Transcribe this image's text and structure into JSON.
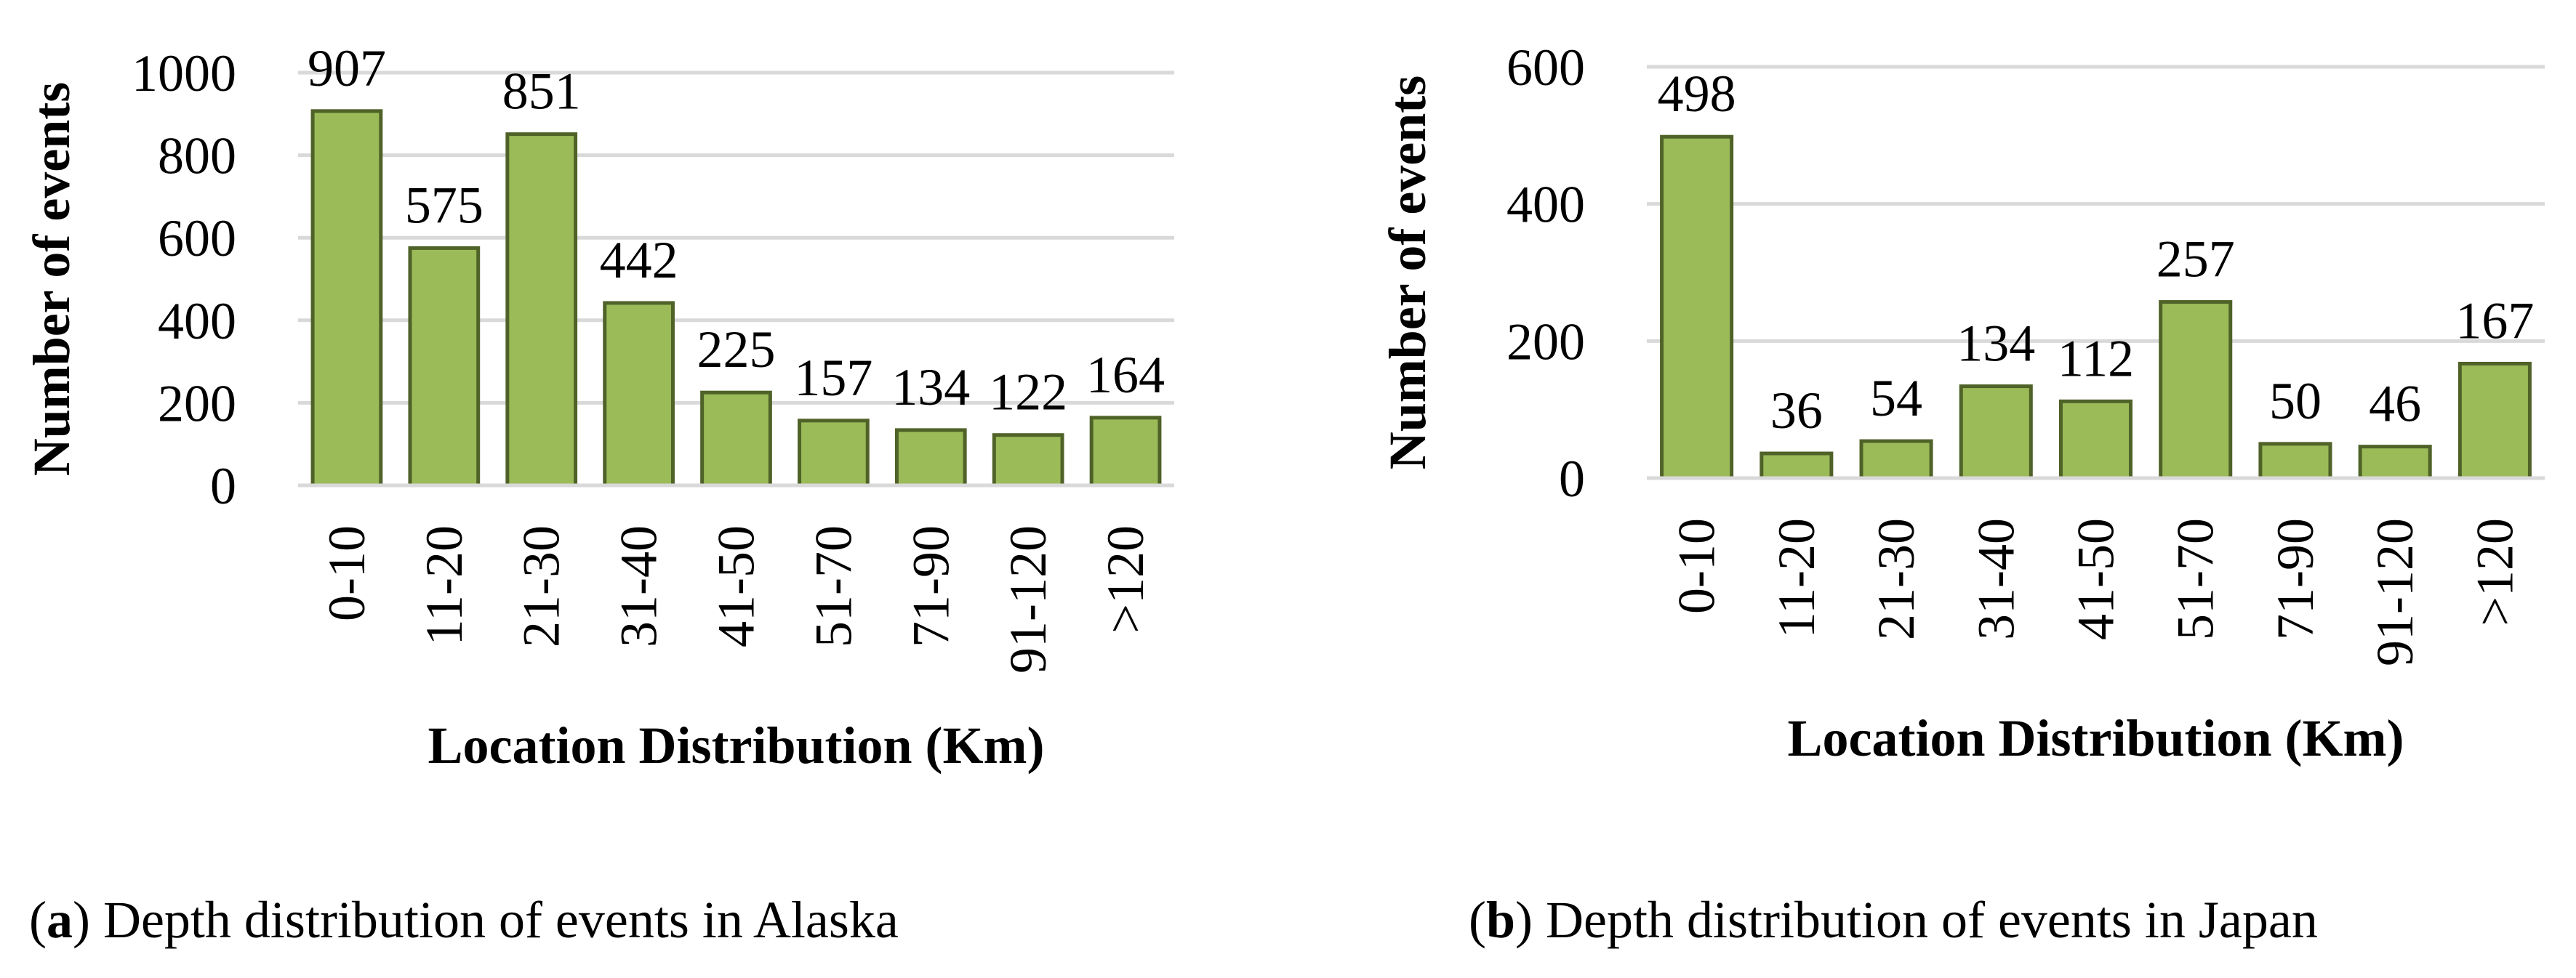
{
  "chart_data": [
    {
      "type": "bar",
      "panel_letter": "a",
      "caption": "Depth distribution of events in Alaska",
      "categories": [
        "0-10",
        "11-20",
        "21-30",
        "31-40",
        "41-50",
        "51-70",
        "71-90",
        "91-120",
        ">120"
      ],
      "values": [
        907,
        575,
        851,
        442,
        225,
        157,
        134,
        122,
        164
      ],
      "data_labels": [
        "907",
        "575",
        "851",
        "442",
        "225",
        "157",
        "134",
        "122",
        "164"
      ],
      "xlabel": "Location Distribution (Km)",
      "ylabel": "Number of events",
      "ylim": [
        0,
        1000
      ],
      "yticks": [
        0,
        200,
        400,
        600,
        800,
        1000
      ],
      "ytick_labels": [
        "0",
        "200",
        "400",
        "600",
        "800",
        "1000"
      ],
      "grid": true,
      "legend": "none"
    },
    {
      "type": "bar",
      "panel_letter": "b",
      "caption": "Depth distribution of events in Japan",
      "categories": [
        "0-10",
        "11-20",
        "21-30",
        "31-40",
        "41-50",
        "51-70",
        "71-90",
        "91-120",
        ">120"
      ],
      "values": [
        498,
        36,
        54,
        134,
        112,
        257,
        50,
        46,
        167
      ],
      "data_labels": [
        "498",
        "36",
        "54",
        "134",
        "112",
        "257",
        "50",
        "46",
        "167"
      ],
      "xlabel": "Location Distribution (Km)",
      "ylabel": "Number of events",
      "ylim": [
        0,
        600
      ],
      "yticks": [
        0,
        200,
        400,
        600
      ],
      "ytick_labels": [
        "0",
        "200",
        "400",
        "600"
      ],
      "grid": true,
      "legend": "none"
    }
  ],
  "colors": {
    "bar_fill": "#9bbb59",
    "bar_edge": "#4f6228",
    "gridline": "#d9d9d9",
    "axis_line": "#d9d9d9"
  }
}
